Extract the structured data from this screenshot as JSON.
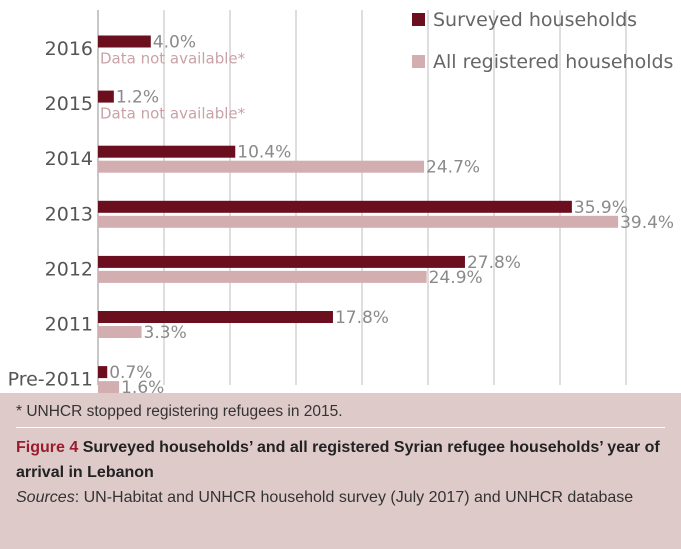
{
  "chart_data": {
    "type": "bar",
    "orientation": "horizontal",
    "categories": [
      "2016",
      "2015",
      "2014",
      "2013",
      "2012",
      "2011",
      "Pre-2011"
    ],
    "series": [
      {
        "name": "Surveyed households",
        "color": "#6b0f1f",
        "values": [
          4.0,
          1.2,
          10.4,
          35.9,
          27.8,
          17.8,
          0.7
        ],
        "labels": [
          "4.0%",
          "1.2%",
          "10.4%",
          "35.9%",
          "27.8%",
          "17.8%",
          "0.7%"
        ]
      },
      {
        "name": "All registered households",
        "color": "#d3aeb1",
        "values": [
          null,
          null,
          24.7,
          39.4,
          24.9,
          3.3,
          1.6
        ],
        "labels": [
          "Data not available*",
          "Data not available*",
          "24.7%",
          "39.4%",
          "24.9%",
          "3.3%",
          "1.6%"
        ]
      }
    ],
    "xlim": [
      0,
      40
    ],
    "grid": true,
    "legend": "top-right"
  },
  "caption": {
    "note": "* UNHCR stopped registering refugees in 2015.",
    "figure_number": "Figure 4",
    "figure_title": "Surveyed households’ and all registered Syrian refugee households’ year of arrival in Lebanon",
    "sources_label": "Sources",
    "sources_text": ": UN-Habitat and UNHCR household survey (July 2017) and UNHCR database"
  }
}
